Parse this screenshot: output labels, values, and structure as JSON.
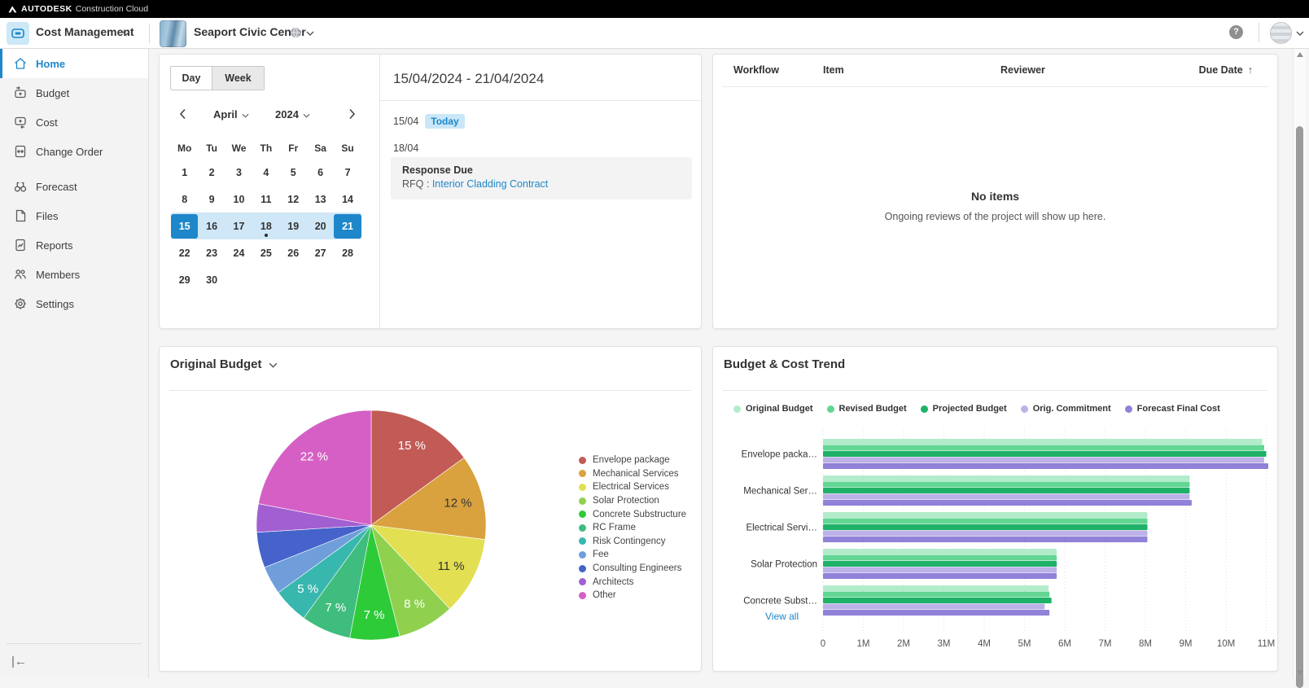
{
  "topbar": {
    "brand": "AUTODESK",
    "brand_suffix": "Construction Cloud"
  },
  "header": {
    "module_label": "Cost Management",
    "project_name": "Seaport Civic Center"
  },
  "sidebar": {
    "items": [
      {
        "label": "Home",
        "icon": "home",
        "active": true
      },
      {
        "label": "Budget",
        "icon": "budget"
      },
      {
        "label": "Cost",
        "icon": "cost"
      },
      {
        "label": "Change Order",
        "icon": "change-order"
      },
      {
        "label": "Forecast",
        "icon": "forecast",
        "group_gap": true
      },
      {
        "label": "Files",
        "icon": "files"
      },
      {
        "label": "Reports",
        "icon": "reports"
      },
      {
        "label": "Members",
        "icon": "members"
      },
      {
        "label": "Settings",
        "icon": "settings"
      }
    ],
    "collapse_glyph": "|←"
  },
  "calendar_card": {
    "view_toggle": {
      "options": [
        "Day",
        "Week"
      ],
      "selected": "Week"
    },
    "month": "April",
    "year": "2024",
    "weekdays": [
      "Mo",
      "Tu",
      "We",
      "Th",
      "Fr",
      "Sa",
      "Su"
    ],
    "weeks": [
      [
        "1",
        "2",
        "3",
        "4",
        "5",
        "6",
        "7"
      ],
      [
        "8",
        "9",
        "10",
        "11",
        "12",
        "13",
        "14"
      ],
      [
        "15",
        "16",
        "17",
        "18",
        "19",
        "20",
        "21"
      ],
      [
        "22",
        "23",
        "24",
        "25",
        "26",
        "27",
        "28"
      ],
      [
        "29",
        "30",
        "",
        "",
        "",
        "",
        ""
      ]
    ],
    "selected_week_row": 2,
    "selected_days": [
      "15",
      "21"
    ],
    "event_dot_day": "18",
    "events": {
      "range_title": "15/04/2024 - 21/04/2024",
      "today_row": {
        "date": "15/04",
        "badge": "Today"
      },
      "due_row": {
        "date": "18/04",
        "title": "Response Due",
        "ref_prefix": "RFQ :",
        "ref_link": "Interior Cladding Contract"
      }
    }
  },
  "reviews_card": {
    "columns": [
      "Workflow",
      "Item",
      "Reviewer",
      "Due Date"
    ],
    "sort_arrow": "↑",
    "empty_title": "No items",
    "empty_subtitle": "Ongoing reviews of the project will show up here."
  },
  "chart_data": [
    {
      "id": "original-budget-pie",
      "type": "pie",
      "title": "Original Budget",
      "legend_position": "right",
      "labels": [
        "Envelope package",
        "Mechanical Services",
        "Electrical Services",
        "Solar Protection",
        "Concrete Substructure",
        "RC Frame",
        "Risk Contingency",
        "Fee",
        "Consulting Engineers",
        "Architects",
        "Other"
      ],
      "values": [
        15,
        12,
        11,
        8,
        7,
        7,
        5,
        4,
        5,
        4,
        22
      ],
      "colors": [
        "#c25b56",
        "#d9a23e",
        "#e2df52",
        "#8fd14f",
        "#2ecb38",
        "#3fbd7e",
        "#38b7ae",
        "#6f9edb",
        "#4563cb",
        "#a25fd1",
        "#d55fc4"
      ],
      "display_labels": [
        "15 %",
        "12 %",
        "11 %",
        "8 %",
        "7 %",
        "7 %",
        "5 %",
        "",
        "",
        "",
        "22 %"
      ],
      "label_colors": [
        "#ffffff",
        "#333333",
        "#333333",
        "#ffffff",
        "#ffffff",
        "#ffffff",
        "#ffffff",
        "",
        "",
        "",
        "#ffffff"
      ]
    },
    {
      "id": "budget-cost-trend",
      "type": "bar",
      "orientation": "horizontal",
      "title": "Budget & Cost Trend",
      "categories": [
        "Envelope packa…",
        "Mechanical Ser…",
        "Electrical Servi…",
        "Solar Protection",
        "Concrete Subst…"
      ],
      "series": [
        {
          "name": "Original Budget",
          "color": "#b2ecca",
          "values": [
            10.9,
            9.1,
            8.05,
            5.8,
            5.6
          ]
        },
        {
          "name": "Revised Budget",
          "color": "#63d694",
          "values": [
            10.95,
            9.1,
            8.05,
            5.8,
            5.62
          ]
        },
        {
          "name": "Projected Budget",
          "color": "#1fb167",
          "values": [
            11.0,
            9.1,
            8.05,
            5.8,
            5.67
          ]
        },
        {
          "name": "Orig. Commitment",
          "color": "#bcb2e8",
          "values": [
            10.95,
            9.1,
            8.05,
            5.8,
            5.5
          ]
        },
        {
          "name": "Forecast Final Cost",
          "color": "#9181d8",
          "values": [
            11.05,
            9.15,
            8.05,
            5.8,
            5.62
          ]
        }
      ],
      "x_ticks": [
        "0",
        "1M",
        "2M",
        "3M",
        "4M",
        "5M",
        "6M",
        "7M",
        "8M",
        "9M",
        "10M",
        "11M"
      ],
      "xlim": [
        0,
        11.6
      ],
      "grid": true,
      "legend_position": "top",
      "view_all_label": "View all"
    }
  ]
}
